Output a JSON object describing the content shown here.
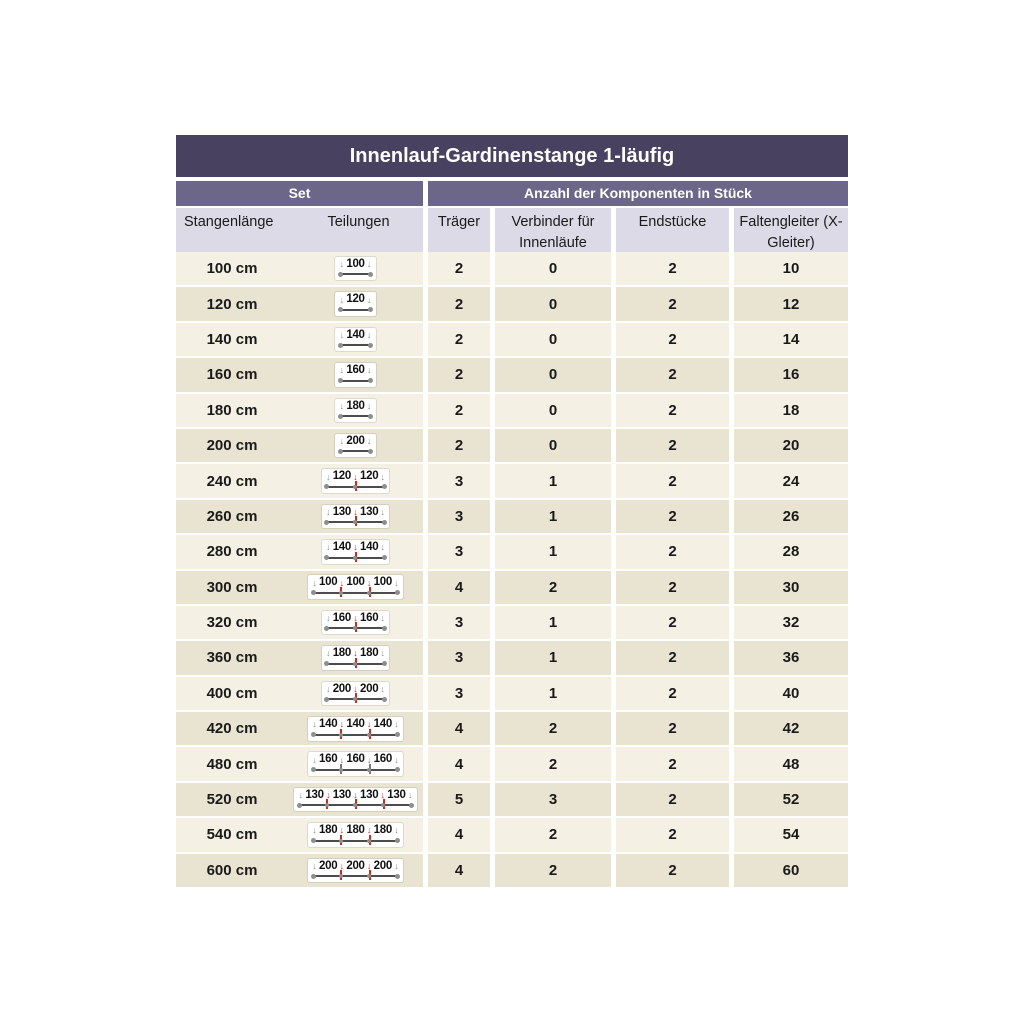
{
  "colors": {
    "title_bg": "#484160",
    "group_bg": "#6c6788",
    "header_bg": "#dcdae6",
    "row_light": "#f4f0e3",
    "row_dark": "#e9e3d1",
    "text": "#1a1a1a",
    "connector_red": "#d1281e",
    "marker_gray": "#8e8e8e",
    "line_dark": "#4c4c4c"
  },
  "chart_data": {
    "type": "table",
    "title": "Innenlauf-Gardinenstange 1-läufig",
    "column_groups": [
      {
        "label": "Set",
        "span": 2
      },
      {
        "label": "Anzahl der Komponenten in Stück",
        "span": 4
      }
    ],
    "columns": [
      "Stangenlänge",
      "Teilungen",
      "Träger",
      "Verbinder für Innenläufe",
      "Endstücke",
      "Faltengleiter (X-Gleiter)"
    ],
    "rows": [
      {
        "length": "100 cm",
        "segments": [
          "100"
        ],
        "connector_color": "red",
        "traeger": 2,
        "verbinder": 0,
        "endstuecke": 2,
        "faltengleiter": 10
      },
      {
        "length": "120 cm",
        "segments": [
          "120"
        ],
        "connector_color": "red",
        "traeger": 2,
        "verbinder": 0,
        "endstuecke": 2,
        "faltengleiter": 12
      },
      {
        "length": "140 cm",
        "segments": [
          "140"
        ],
        "connector_color": "red",
        "traeger": 2,
        "verbinder": 0,
        "endstuecke": 2,
        "faltengleiter": 14
      },
      {
        "length": "160 cm",
        "segments": [
          "160"
        ],
        "connector_color": "red",
        "traeger": 2,
        "verbinder": 0,
        "endstuecke": 2,
        "faltengleiter": 16
      },
      {
        "length": "180 cm",
        "segments": [
          "180"
        ],
        "connector_color": "red",
        "traeger": 2,
        "verbinder": 0,
        "endstuecke": 2,
        "faltengleiter": 18
      },
      {
        "length": "200 cm",
        "segments": [
          "200"
        ],
        "connector_color": "red",
        "traeger": 2,
        "verbinder": 0,
        "endstuecke": 2,
        "faltengleiter": 20
      },
      {
        "length": "240 cm",
        "segments": [
          "120",
          "120"
        ],
        "connector_color": "red",
        "traeger": 3,
        "verbinder": 1,
        "endstuecke": 2,
        "faltengleiter": 24
      },
      {
        "length": "260 cm",
        "segments": [
          "130",
          "130"
        ],
        "connector_color": "red",
        "traeger": 3,
        "verbinder": 1,
        "endstuecke": 2,
        "faltengleiter": 26
      },
      {
        "length": "280 cm",
        "segments": [
          "140",
          "140"
        ],
        "connector_color": "red",
        "traeger": 3,
        "verbinder": 1,
        "endstuecke": 2,
        "faltengleiter": 28
      },
      {
        "length": "300 cm",
        "segments": [
          "100",
          "100",
          "100"
        ],
        "connector_color": "red",
        "traeger": 4,
        "verbinder": 2,
        "endstuecke": 2,
        "faltengleiter": 30
      },
      {
        "length": "320 cm",
        "segments": [
          "160",
          "160"
        ],
        "connector_color": "red",
        "traeger": 3,
        "verbinder": 1,
        "endstuecke": 2,
        "faltengleiter": 32
      },
      {
        "length": "360 cm",
        "segments": [
          "180",
          "180"
        ],
        "connector_color": "red",
        "traeger": 3,
        "verbinder": 1,
        "endstuecke": 2,
        "faltengleiter": 36
      },
      {
        "length": "400 cm",
        "segments": [
          "200",
          "200"
        ],
        "connector_color": "red",
        "traeger": 3,
        "verbinder": 1,
        "endstuecke": 2,
        "faltengleiter": 40
      },
      {
        "length": "420 cm",
        "segments": [
          "140",
          "140",
          "140"
        ],
        "connector_color": "red",
        "traeger": 4,
        "verbinder": 2,
        "endstuecke": 2,
        "faltengleiter": 42
      },
      {
        "length": "480 cm",
        "segments": [
          "160",
          "160",
          "160"
        ],
        "connector_color": "gray",
        "traeger": 4,
        "verbinder": 2,
        "endstuecke": 2,
        "faltengleiter": 48
      },
      {
        "length": "520 cm",
        "segments": [
          "130",
          "130",
          "130",
          "130"
        ],
        "connector_color": "red",
        "traeger": 5,
        "verbinder": 3,
        "endstuecke": 2,
        "faltengleiter": 52
      },
      {
        "length": "540 cm",
        "segments": [
          "180",
          "180",
          "180"
        ],
        "connector_color": "red",
        "traeger": 4,
        "verbinder": 2,
        "endstuecke": 2,
        "faltengleiter": 54
      },
      {
        "length": "600 cm",
        "segments": [
          "200",
          "200",
          "200"
        ],
        "connector_color": "red",
        "traeger": 4,
        "verbinder": 2,
        "endstuecke": 2,
        "faltengleiter": 60
      }
    ]
  }
}
